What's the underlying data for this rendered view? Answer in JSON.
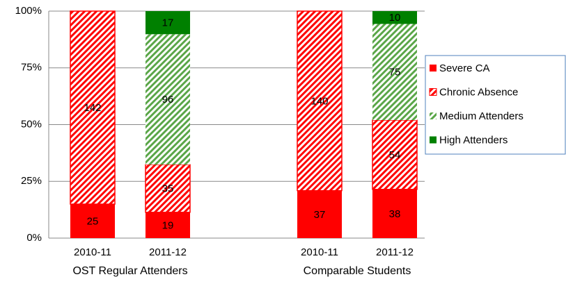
{
  "chart_data": {
    "type": "bar",
    "stacking": "percent",
    "groups": [
      {
        "name": "OST Regular Attenders",
        "categories": [
          "2010-11",
          "2011-12"
        ]
      },
      {
        "name": "Comparable Students",
        "categories": [
          "2010-11",
          "2011-12"
        ]
      }
    ],
    "series": [
      {
        "name": "Severe CA",
        "color": "#ff0000",
        "fill": "solid",
        "values": [
          25,
          19,
          37,
          38
        ]
      },
      {
        "name": "Chronic Absence",
        "color": "#ff0000",
        "fill": "hatched",
        "values": [
          142,
          35,
          140,
          54
        ]
      },
      {
        "name": "Medium Attenders",
        "color": "#5aa648",
        "fill": "hatched",
        "values": [
          null,
          96,
          null,
          75
        ]
      },
      {
        "name": "High Attenders",
        "color": "#008000",
        "fill": "solid",
        "values": [
          null,
          17,
          null,
          10
        ]
      }
    ],
    "ylim": [
      0,
      100
    ],
    "yticks": [
      {
        "value": 0,
        "label": "0%"
      },
      {
        "value": 25,
        "label": "25%"
      },
      {
        "value": 50,
        "label": "50%"
      },
      {
        "value": 75,
        "label": "75%"
      },
      {
        "value": 100,
        "label": "100%"
      }
    ],
    "grid": true,
    "legend": "right"
  }
}
